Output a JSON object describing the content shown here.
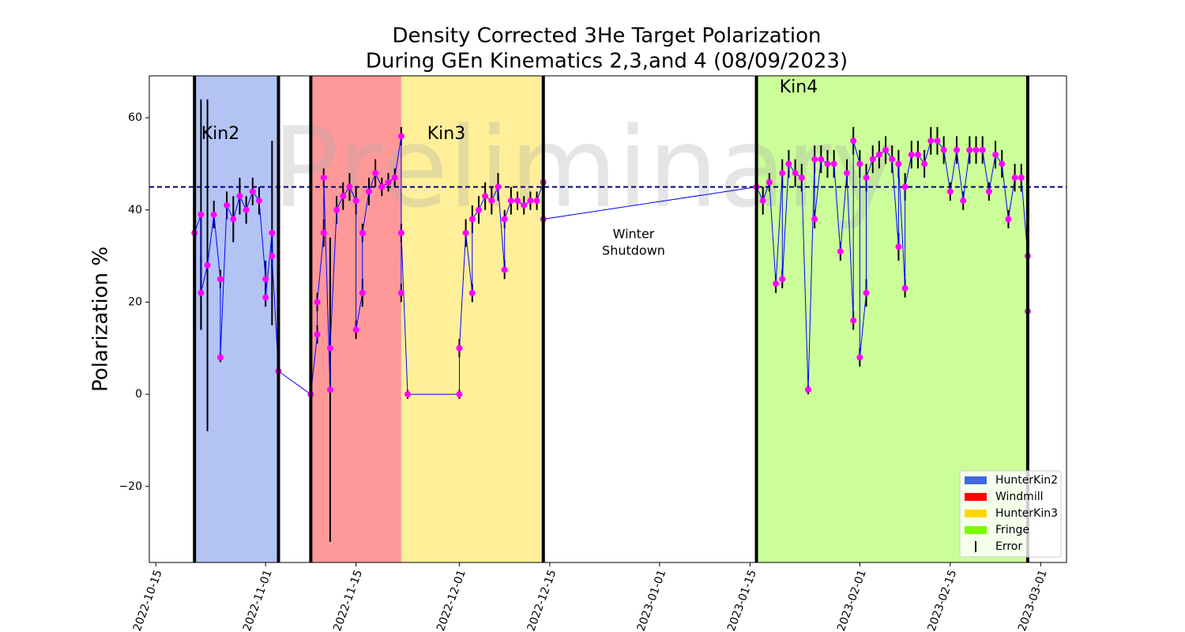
{
  "chart_data": {
    "type": "errorbar",
    "title": "Density Corrected 3He Target Polarization",
    "subtitle": "During GEn Kinematics 2,3,and 4 (08/09/2023)",
    "y_label": "Polarization %",
    "watermark": "Preliminary",
    "annotations": [
      "Kin2",
      "Kin3",
      "Kin4"
    ],
    "shutdown_label": [
      "Winter",
      "Shutdown"
    ],
    "xlim": [
      "2022-10-14",
      "2023-03-05"
    ],
    "xticks": [
      "2022-10-15",
      "2022-11-01",
      "2022-11-15",
      "2022-12-01",
      "2022-12-15",
      "2023-01-01",
      "2023-01-15",
      "2023-02-01",
      "2023-02-15",
      "2023-03-01"
    ],
    "ylim": [
      -36.5,
      69.1
    ],
    "yticks": [
      {
        "value": -20,
        "label": "−20"
      },
      0,
      20,
      40,
      60
    ],
    "spans": [
      {
        "name": "HunterKin2",
        "color": "#4169e1",
        "start": "2022-10-21",
        "end": "2022-11-03"
      },
      {
        "name": "Windmill",
        "color": "#ff0000",
        "start": "2022-11-08",
        "end": "2022-11-22"
      },
      {
        "name": "HunterKin3",
        "color": "#ffd700",
        "start": "2022-11-22",
        "end": "2022-12-14"
      },
      {
        "name": "Fringe",
        "color": "#7cfc00",
        "start": "2023-01-16",
        "end": "2023-02-27"
      }
    ],
    "vlines": [
      "2022-10-21",
      "2022-11-03",
      "2022-11-08",
      "2022-12-14",
      "2023-01-16",
      "2023-02-27"
    ],
    "hline": 45,
    "hline_color": "#000080",
    "line_color": "#0000ff",
    "marker_color": "#ff00ff",
    "error_color": "#000000",
    "error_label": "Error",
    "x": [
      "2022-10-21",
      "2022-10-22",
      "2022-10-22",
      "2022-10-23",
      "2022-10-24",
      "2022-10-25",
      "2022-10-25",
      "2022-10-26",
      "2022-10-27",
      "2022-10-28",
      "2022-10-29",
      "2022-10-30",
      "2022-10-31",
      "2022-11-01",
      "2022-11-01",
      "2022-11-02",
      "2022-11-02",
      "2022-11-03",
      "2022-11-08",
      "2022-11-09",
      "2022-11-09",
      "2022-11-10",
      "2022-11-10",
      "2022-11-11",
      "2022-11-11",
      "2022-11-12",
      "2022-11-13",
      "2022-11-14",
      "2022-11-15",
      "2022-11-15",
      "2022-11-16",
      "2022-11-16",
      "2022-11-17",
      "2022-11-18",
      "2022-11-19",
      "2022-11-20",
      "2022-11-21",
      "2022-11-22",
      "2022-11-22",
      "2022-11-22",
      "2022-11-23",
      "2022-12-01",
      "2022-12-01",
      "2022-12-02",
      "2022-12-03",
      "2022-12-03",
      "2022-12-04",
      "2022-12-05",
      "2022-12-06",
      "2022-12-07",
      "2022-12-08",
      "2022-12-08",
      "2022-12-09",
      "2022-12-10",
      "2022-12-11",
      "2022-12-12",
      "2022-12-13",
      "2022-12-14",
      "2022-12-14",
      "2023-01-16",
      "2023-01-17",
      "2023-01-18",
      "2023-01-19",
      "2023-01-20",
      "2023-01-20",
      "2023-01-21",
      "2023-01-22",
      "2023-01-23",
      "2023-01-24",
      "2023-01-25",
      "2023-01-25",
      "2023-01-26",
      "2023-01-27",
      "2023-01-28",
      "2023-01-29",
      "2023-01-30",
      "2023-01-31",
      "2023-01-31",
      "2023-02-01",
      "2023-02-01",
      "2023-02-02",
      "2023-02-02",
      "2023-02-03",
      "2023-02-04",
      "2023-02-05",
      "2023-02-06",
      "2023-02-07",
      "2023-02-07",
      "2023-02-08",
      "2023-02-08",
      "2023-02-09",
      "2023-02-10",
      "2023-02-11",
      "2023-02-12",
      "2023-02-13",
      "2023-02-14",
      "2023-02-15",
      "2023-02-16",
      "2023-02-17",
      "2023-02-18",
      "2023-02-19",
      "2023-02-20",
      "2023-02-21",
      "2023-02-22",
      "2023-02-23",
      "2023-02-24",
      "2023-02-25",
      "2023-02-26",
      "2023-02-27",
      "2023-02-27"
    ],
    "values": [
      35,
      39,
      22,
      28,
      39,
      25,
      8,
      41,
      38,
      43,
      40,
      44,
      42,
      25,
      21,
      35,
      30,
      5,
      0,
      13,
      20,
      35,
      47,
      1,
      10,
      40,
      43,
      45,
      42,
      14,
      22,
      35,
      44,
      48,
      45,
      46,
      47,
      56,
      22,
      35,
      0,
      0,
      10,
      35,
      22,
      38,
      40,
      43,
      42,
      45,
      27,
      38,
      42,
      42,
      41,
      42,
      42,
      46,
      38,
      45,
      42,
      46,
      24,
      48,
      25,
      50,
      48,
      47,
      1,
      51,
      38,
      51,
      50,
      50,
      31,
      48,
      16,
      55,
      50,
      8,
      22,
      47,
      51,
      52,
      53,
      51,
      32,
      50,
      23,
      45,
      52,
      52,
      50,
      55,
      55,
      53,
      44,
      53,
      42,
      53,
      53,
      53,
      44,
      52,
      50,
      38,
      47,
      47,
      30,
      18
    ],
    "errors": [
      2,
      25,
      8,
      36,
      3,
      2,
      1,
      3,
      5,
      4,
      3,
      3,
      3,
      4,
      2,
      20,
      3,
      2,
      1,
      2,
      2,
      3,
      2,
      33,
      2,
      3,
      3,
      3,
      3,
      2,
      3,
      2,
      3,
      3,
      2,
      2,
      2,
      2,
      2,
      2,
      1,
      1,
      2,
      3,
      2,
      3,
      3,
      3,
      3,
      3,
      2,
      2,
      3,
      2,
      2,
      2,
      2,
      2,
      2,
      3,
      3,
      2,
      2,
      3,
      2,
      3,
      3,
      3,
      1,
      3,
      2,
      3,
      3,
      3,
      2,
      3,
      2,
      3,
      3,
      2,
      3,
      3,
      3,
      3,
      3,
      3,
      3,
      3,
      2,
      3,
      3,
      3,
      3,
      3,
      3,
      3,
      2,
      3,
      2,
      3,
      3,
      3,
      2,
      3,
      3,
      2,
      3,
      3,
      3,
      2
    ]
  }
}
